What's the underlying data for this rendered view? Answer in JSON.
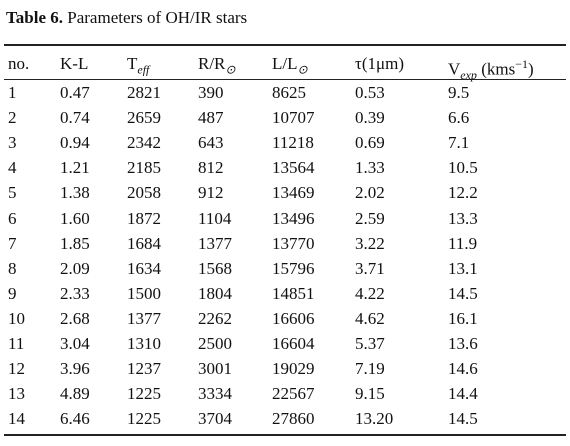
{
  "caption": {
    "label": "Table 6.",
    "text": " Parameters of OH/IR stars"
  },
  "table": {
    "header": [
      {
        "text": "no."
      },
      {
        "text": "K-L"
      },
      {
        "text": "T",
        "sub": "eff"
      },
      {
        "text": "R/R",
        "sub": "⊙"
      },
      {
        "text": "L/L",
        "sub": "⊙"
      },
      {
        "text": "τ(1μm)"
      },
      {
        "text": "V",
        "sub": "exp",
        "after": " (kms",
        "sup": "−1",
        "end": ")"
      }
    ],
    "rows": [
      [
        "1",
        "0.47",
        "2821",
        "390",
        "8625",
        "0.53",
        "9.5"
      ],
      [
        "2",
        "0.74",
        "2659",
        "487",
        "10707",
        "0.39",
        "6.6"
      ],
      [
        "3",
        "0.94",
        "2342",
        "643",
        "11218",
        "0.69",
        "7.1"
      ],
      [
        "4",
        "1.21",
        "2185",
        "812",
        "13564",
        "1.33",
        "10.5"
      ],
      [
        "5",
        "1.38",
        "2058",
        "912",
        "13469",
        "2.02",
        "12.2"
      ],
      [
        "6",
        "1.60",
        "1872",
        "1104",
        "13496",
        "2.59",
        "13.3"
      ],
      [
        "7",
        "1.85",
        "1684",
        "1377",
        "13770",
        "3.22",
        "11.9"
      ],
      [
        "8",
        "2.09",
        "1634",
        "1568",
        "15796",
        "3.71",
        "13.1"
      ],
      [
        "9",
        "2.33",
        "1500",
        "1804",
        "14851",
        "4.22",
        "14.5"
      ],
      [
        "10",
        "2.68",
        "1377",
        "2262",
        "16606",
        "4.62",
        "16.1"
      ],
      [
        "11",
        "3.04",
        "1310",
        "2500",
        "16604",
        "5.37",
        "13.6"
      ],
      [
        "12",
        "3.96",
        "1237",
        "3001",
        "19029",
        "7.19",
        "14.6"
      ],
      [
        "13",
        "4.89",
        "1225",
        "3334",
        "22567",
        "9.15",
        "14.4"
      ],
      [
        "14",
        "6.46",
        "1225",
        "3704",
        "27860",
        "13.20",
        "14.5"
      ]
    ]
  }
}
